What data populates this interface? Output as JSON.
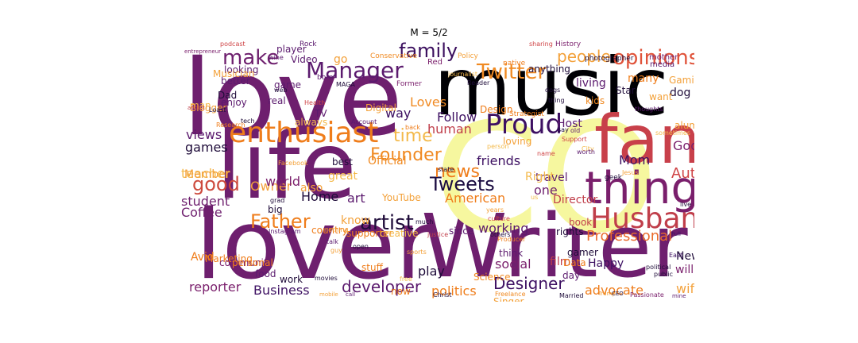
{
  "figure": {
    "title": "M = 5/2"
  },
  "wordcloud": {
    "words": [
      {
        "text": "love",
        "color": "#6e1f6e"
      },
      {
        "text": "music",
        "color": "#000004"
      },
      {
        "text": "lover",
        "color": "#6e1f6e"
      },
      {
        "text": "life",
        "color": "#6e1f6e"
      },
      {
        "text": "Writer",
        "color": "#6e1f6e"
      },
      {
        "text": "CO",
        "color": "#f6f79f"
      },
      {
        "text": "fan",
        "color": "#c8404a"
      },
      {
        "text": "things",
        "color": "#7a1f6c"
      },
      {
        "text": "enthusiast",
        "color": "#ef7d1b"
      },
      {
        "text": "Husband",
        "color": "#c03e4a"
      },
      {
        "text": "Proud",
        "color": "#3d1062"
      },
      {
        "text": "Manager",
        "color": "#5b1a6e"
      },
      {
        "text": "Twitter",
        "color": "#f08a22"
      },
      {
        "text": "opinions",
        "color": "#e0533a"
      },
      {
        "text": "family",
        "color": "#3b0f5e"
      },
      {
        "text": "make",
        "color": "#6e1f6e"
      },
      {
        "text": "Father",
        "color": "#ef7d1b"
      },
      {
        "text": "artist",
        "color": "#1f0c3a"
      },
      {
        "text": "Tweets",
        "color": "#1b0c41"
      },
      {
        "text": "good",
        "color": "#cd4a3d"
      },
      {
        "text": "news",
        "color": "#ef7d1b"
      },
      {
        "text": "Designer",
        "color": "#3d1062"
      },
      {
        "text": "developer",
        "color": "#5b1a6e"
      },
      {
        "text": "Founder",
        "color": "#f08a22"
      },
      {
        "text": "time",
        "color": "#f3b94a"
      },
      {
        "text": "people",
        "color": "#f3a13a"
      },
      {
        "text": "Author",
        "color": "#cf4446"
      },
      {
        "text": "Professional",
        "color": "#ea6a2c"
      },
      {
        "text": "working",
        "color": "#5b1a6e"
      },
      {
        "text": "American",
        "color": "#ef7d1b"
      },
      {
        "text": "Follow",
        "color": "#3d1062"
      },
      {
        "text": "Loves",
        "color": "#f08a22"
      },
      {
        "text": "Home",
        "color": "#1f0c3a"
      },
      {
        "text": "Coffee",
        "color": "#6e1f6e"
      },
      {
        "text": "student",
        "color": "#6e1f6e"
      },
      {
        "text": "games",
        "color": "#1f0c3a"
      },
      {
        "text": "views",
        "color": "#5b1a6e"
      },
      {
        "text": "teacher",
        "color": "#f3b94a"
      },
      {
        "text": "Member",
        "color": "#f3a13a"
      },
      {
        "text": "Business",
        "color": "#3d1062"
      },
      {
        "text": "reporter",
        "color": "#7a1f6c"
      },
      {
        "text": "politics",
        "color": "#ef7d1b"
      },
      {
        "text": "advocate",
        "color": "#ef7d1b"
      },
      {
        "text": "wife",
        "color": "#f3a13a"
      },
      {
        "text": "social",
        "color": "#7a1f6c"
      },
      {
        "text": "play",
        "color": "#1f0c3a"
      },
      {
        "text": "Mom",
        "color": "#3d1062"
      },
      {
        "text": "God",
        "color": "#7a1f6c"
      },
      {
        "text": "human",
        "color": "#c03e4a"
      },
      {
        "text": "friends",
        "color": "#3d1062"
      },
      {
        "text": "one",
        "color": "#6e1f6e"
      },
      {
        "text": "way",
        "color": "#3d1062"
      },
      {
        "text": "Owner",
        "color": "#f3a13a"
      },
      {
        "text": "world",
        "color": "#7a1f6c"
      },
      {
        "text": "art",
        "color": "#5b1a6e"
      },
      {
        "text": "also",
        "color": "#f3a13a"
      },
      {
        "text": "great",
        "color": "#f3b94a"
      },
      {
        "text": "know",
        "color": "#f3a13a"
      },
      {
        "text": "Avid",
        "color": "#ef7d1b"
      },
      {
        "text": "Marketing",
        "color": "#ef7d1b"
      },
      {
        "text": "community",
        "color": "#7a1f6c"
      },
      {
        "text": "personal",
        "color": "#ef7d1b"
      },
      {
        "text": "food",
        "color": "#5b1a6e"
      },
      {
        "text": "work",
        "color": "#1f0c3a"
      },
      {
        "text": "stuff",
        "color": "#ef7d1b"
      },
      {
        "text": "now",
        "color": "#ef7d1b"
      },
      {
        "text": "Science",
        "color": "#f08a22"
      },
      {
        "text": "think",
        "color": "#5b1a6e"
      },
      {
        "text": "Singer",
        "color": "#f3a13a"
      },
      {
        "text": "film",
        "color": "#c03e4a"
      },
      {
        "text": "Data",
        "color": "#ef7d1b"
      },
      {
        "text": "gamer",
        "color": "#1f0c3a"
      },
      {
        "text": "Happy",
        "color": "#3d1062"
      },
      {
        "text": "day",
        "color": "#5b1a6e"
      },
      {
        "text": "New",
        "color": "#1f0c3a"
      },
      {
        "text": "will",
        "color": "#7a1f6c"
      },
      {
        "text": "book",
        "color": "#c03e4a"
      },
      {
        "text": "rights",
        "color": "#1f0c3a"
      },
      {
        "text": "Director",
        "color": "#c03e4a"
      },
      {
        "text": "travel",
        "color": "#5b1a6e"
      },
      {
        "text": "Right",
        "color": "#f3b94a"
      },
      {
        "text": "Official",
        "color": "#f08a22"
      },
      {
        "text": "best",
        "color": "#1f0c3a"
      },
      {
        "text": "Host",
        "color": "#5b1a6e"
      },
      {
        "text": "living",
        "color": "#5b1a6e"
      },
      {
        "text": "loving",
        "color": "#f3a13a"
      },
      {
        "text": "Star",
        "color": "#1f0c3a"
      },
      {
        "text": "kids",
        "color": "#f08a22"
      },
      {
        "text": "dog",
        "color": "#1f0c3a"
      },
      {
        "text": "want",
        "color": "#f3a13a"
      },
      {
        "text": "many",
        "color": "#ef7d1b"
      },
      {
        "text": "Gaming",
        "color": "#f3a13a"
      },
      {
        "text": "mother",
        "color": "#6e1f6e"
      },
      {
        "text": "alum",
        "color": "#f3a13a"
      },
      {
        "text": "Design",
        "color": "#ef7d1b"
      },
      {
        "text": "anything",
        "color": "#1f0c3a"
      },
      {
        "text": "Video",
        "color": "#5b1a6e"
      },
      {
        "text": "player",
        "color": "#5b1a6e"
      },
      {
        "text": "Red",
        "color": "#7a1f6c"
      },
      {
        "text": "go",
        "color": "#f3a13a"
      },
      {
        "text": "looking",
        "color": "#5b1a6e"
      },
      {
        "text": "Musician",
        "color": "#f3a13a"
      },
      {
        "text": "better",
        "color": "#5b1a6e"
      },
      {
        "text": "Dad",
        "color": "#1f0c3a"
      },
      {
        "text": "enjoy",
        "color": "#5b1a6e"
      },
      {
        "text": "man",
        "color": "#f3b94a"
      },
      {
        "text": "Blogger",
        "color": "#f3a13a"
      },
      {
        "text": "game",
        "color": "#5b1a6e"
      },
      {
        "text": "real",
        "color": "#5b1a6e"
      },
      {
        "text": "TV",
        "color": "#5b1a6e"
      },
      {
        "text": "Digital",
        "color": "#f3a13a"
      },
      {
        "text": "always",
        "color": "#f3b94a"
      },
      {
        "text": "big",
        "color": "#1f0c3a"
      },
      {
        "text": "country",
        "color": "#ef7d1b"
      },
      {
        "text": "YouTube",
        "color": "#f3a13a"
      },
      {
        "text": "supporter",
        "color": "#ef7d1b"
      },
      {
        "text": "creative",
        "color": "#f3b94a"
      },
      {
        "text": "since",
        "color": "#5b1a6e"
      },
      {
        "text": "photographer",
        "color": "#1f0c3a"
      },
      {
        "text": "media",
        "color": "#5b1a6e"
      },
      {
        "text": "Policy",
        "color": "#f3a13a"
      },
      {
        "text": "native",
        "color": "#ef7d1b"
      },
      {
        "text": "Rock",
        "color": "#5b1a6e"
      },
      {
        "text": "History",
        "color": "#7a1f6c"
      },
      {
        "text": "sharing",
        "color": "#cf4446"
      },
      {
        "text": "podcast",
        "color": "#cf4446"
      },
      {
        "text": "wine",
        "color": "#5b1a6e"
      },
      {
        "text": "Conservative",
        "color": "#f08a22"
      },
      {
        "text": "born",
        "color": "#5b1a6e"
      },
      {
        "text": "MAGA",
        "color": "#1f0c3a"
      },
      {
        "text": "Former",
        "color": "#7a1f6c"
      },
      {
        "text": "journalist",
        "color": "#f3b94a"
      },
      {
        "text": "Reader",
        "color": "#1f0c3a"
      },
      {
        "text": "Strategist",
        "color": "#ef7d1b"
      },
      {
        "text": "entrepreneur",
        "color": "#7a1f6c"
      },
      {
        "text": "addict",
        "color": "#c03e4a"
      },
      {
        "text": "Health",
        "color": "#cf4446"
      },
      {
        "text": "web",
        "color": "#1f0c3a"
      },
      {
        "text": "tech",
        "color": "#1f0c3a"
      },
      {
        "text": "Research",
        "color": "#ef7d1b"
      },
      {
        "text": "Account",
        "color": "#5b1a6e"
      },
      {
        "text": "back",
        "color": "#ef7d1b"
      },
      {
        "text": "person",
        "color": "#f3b94a"
      },
      {
        "text": "Support",
        "color": "#cf4446"
      },
      {
        "text": "City",
        "color": "#f3b94a"
      },
      {
        "text": "old",
        "color": "#5b1a6e"
      },
      {
        "text": "say",
        "color": "#1f0c3a"
      },
      {
        "text": "dogs",
        "color": "#1f0c3a"
      },
      {
        "text": "thing",
        "color": "#1f0c3a"
      },
      {
        "text": "thoughts",
        "color": "#5b1a6e"
      },
      {
        "text": "sometimes",
        "color": "#f3b94a"
      },
      {
        "text": "worth",
        "color": "#5b1a6e"
      },
      {
        "text": "name",
        "color": "#cf4446"
      },
      {
        "text": "geek",
        "color": "#1f0c3a"
      },
      {
        "text": "Jesus",
        "color": "#f3a13a"
      },
      {
        "text": "state",
        "color": "#1f0c3a"
      },
      {
        "text": "Facebook",
        "color": "#f3a13a"
      },
      {
        "text": "grad",
        "color": "#1f0c3a"
      },
      {
        "text": "Instagram",
        "color": "#5b1a6e"
      },
      {
        "text": "nothing",
        "color": "#f3a13a"
      },
      {
        "text": "much",
        "color": "#1f0c3a"
      },
      {
        "text": "culture",
        "color": "#cf4446"
      },
      {
        "text": "years",
        "color": "#f3a13a"
      },
      {
        "text": "us",
        "color": "#f3b94a"
      },
      {
        "text": "Producer",
        "color": "#ef7d1b"
      },
      {
        "text": "others",
        "color": "#1f0c3a"
      },
      {
        "text": "justice",
        "color": "#c03e4a"
      },
      {
        "text": "talk",
        "color": "#5b1a6e"
      },
      {
        "text": "open",
        "color": "#1f0c3a"
      },
      {
        "text": "guy",
        "color": "#f3a13a"
      },
      {
        "text": "sports",
        "color": "#f3a13a"
      },
      {
        "text": "movies",
        "color": "#1f0c3a"
      },
      {
        "text": "free",
        "color": "#f3b94a"
      },
      {
        "text": "mobile",
        "color": "#f3a13a"
      },
      {
        "text": "call",
        "color": "#5b1a6e"
      },
      {
        "text": "Christ",
        "color": "#1f0c3a"
      },
      {
        "text": "Freelance",
        "color": "#f08a22"
      },
      {
        "text": "Married",
        "color": "#1f0c3a"
      },
      {
        "text": "Trump",
        "color": "#f3a13a"
      },
      {
        "text": "CEO",
        "color": "#1f0c3a"
      },
      {
        "text": "Passionate",
        "color": "#7a1f6c"
      },
      {
        "text": "political",
        "color": "#1f0c3a"
      },
      {
        "text": "public",
        "color": "#1f0c3a"
      },
      {
        "text": "mine",
        "color": "#5b1a6e"
      },
      {
        "text": "East",
        "color": "#3d1062"
      },
      {
        "text": "Full",
        "color": "#3d1062"
      },
      {
        "text": "live",
        "color": "#1f0c3a"
      },
      {
        "text": "Loast",
        "color": "#1f0c3a"
      }
    ]
  }
}
